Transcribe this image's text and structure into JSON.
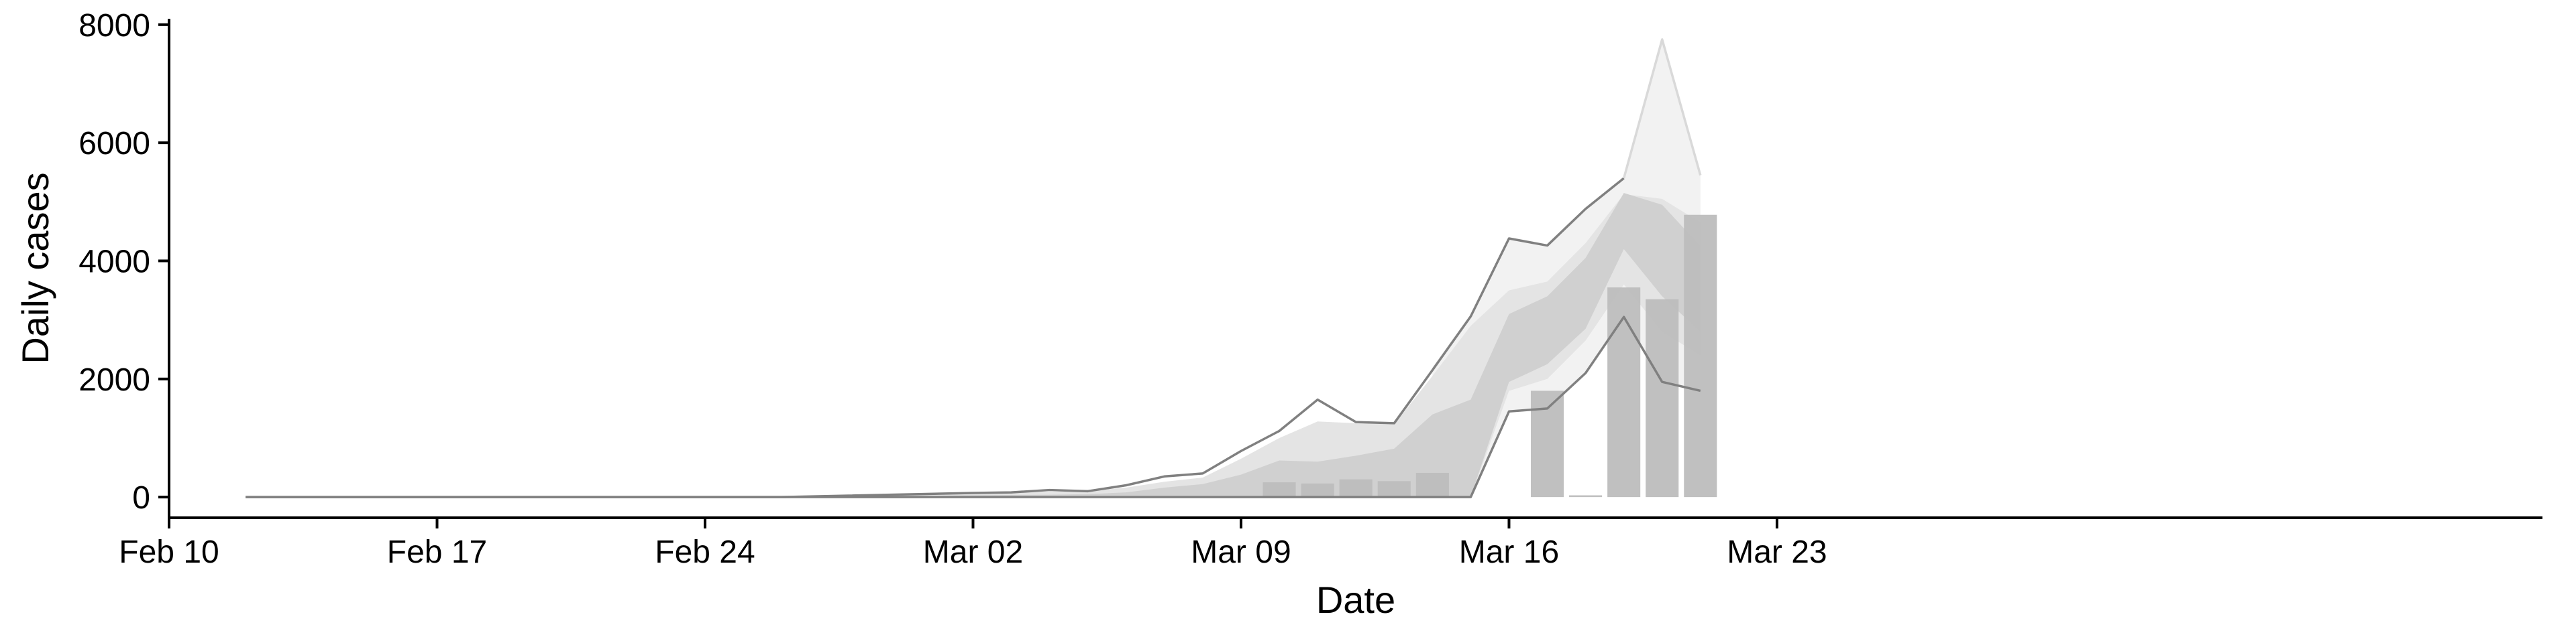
{
  "chart_data": {
    "type": "bar",
    "title": "",
    "xlabel": "Date",
    "ylabel": "Daily cases",
    "x_axis": {
      "type": "date",
      "range": [
        "2020-02-10",
        "2020-03-23"
      ],
      "ticks": [
        "2020-02-10",
        "2020-02-17",
        "2020-02-24",
        "2020-03-02",
        "2020-03-09",
        "2020-03-16",
        "2020-03-23"
      ],
      "tick_labels": [
        "Feb 10",
        "Feb 17",
        "Feb 24",
        "Mar 02",
        "Mar 09",
        "Mar 16",
        "Mar 23"
      ]
    },
    "y_axis": {
      "range": [
        -350,
        8100
      ],
      "ticks": [
        0,
        2000,
        4000,
        6000,
        8000
      ],
      "tick_labels": [
        "0",
        "2000",
        "4000",
        "6000",
        "8000"
      ]
    },
    "grid": false,
    "legend": "none",
    "colors": {
      "bars": "#bdbdbd",
      "band_outer": "#f2f2f2",
      "band_mid": "#e4e4e4",
      "band_inner": "#d0d0d0",
      "band_line": "#808080",
      "outer_line": "#d9d9d9",
      "axis": "#000000"
    },
    "series": [
      {
        "type": "bar",
        "x": [
          "2020-03-10",
          "2020-03-11",
          "2020-03-12",
          "2020-03-13",
          "2020-03-14",
          "2020-03-15",
          "2020-03-16",
          "2020-03-17",
          "2020-03-18",
          "2020-03-19",
          "2020-03-20",
          "2020-03-21"
        ],
        "values": [
          250,
          230,
          300,
          270,
          410,
          0,
          0,
          1800,
          30,
          3550,
          3350,
          4780
        ]
      },
      {
        "type": "band",
        "level": "outer",
        "x": [
          "2020-03-14",
          "2020-03-15",
          "2020-03-16",
          "2020-03-17",
          "2020-03-18",
          "2020-03-19",
          "2020-03-20",
          "2020-03-21"
        ],
        "lower": [
          0,
          0,
          1450,
          1500,
          2100,
          3050,
          1950,
          1800
        ],
        "upper": [
          2200,
          3100,
          4380,
          4260,
          4900,
          5400,
          7750,
          5450
        ]
      },
      {
        "type": "band",
        "level": "mid",
        "x": [
          "2020-02-12",
          "2020-02-26",
          "2020-03-02",
          "2020-03-04",
          "2020-03-05",
          "2020-03-06",
          "2020-03-07",
          "2020-03-08",
          "2020-03-09",
          "2020-03-10",
          "2020-03-11",
          "2020-03-12",
          "2020-03-13",
          "2020-03-14",
          "2020-03-15",
          "2020-03-16",
          "2020-03-17",
          "2020-03-18",
          "2020-03-19",
          "2020-03-20",
          "2020-03-21"
        ],
        "lower": [
          0,
          0,
          0,
          0,
          0,
          0,
          0,
          0,
          0,
          0,
          0,
          0,
          0,
          0,
          0,
          1800,
          2000,
          2650,
          3600,
          2800,
          2400
        ],
        "upper": [
          0,
          0,
          60,
          90,
          100,
          160,
          260,
          330,
          650,
          1000,
          1280,
          1250,
          1230,
          2050,
          2900,
          3500,
          3650,
          4300,
          5130,
          5050,
          4650
        ]
      },
      {
        "type": "band",
        "level": "inner",
        "x": [
          "2020-02-12",
          "2020-02-26",
          "2020-03-02",
          "2020-03-04",
          "2020-03-05",
          "2020-03-06",
          "2020-03-07",
          "2020-03-08",
          "2020-03-09",
          "2020-03-10",
          "2020-03-11",
          "2020-03-12",
          "2020-03-13",
          "2020-03-14",
          "2020-03-15",
          "2020-03-16",
          "2020-03-17",
          "2020-03-18",
          "2020-03-19",
          "2020-03-20",
          "2020-03-21"
        ],
        "lower": [
          0,
          0,
          0,
          0,
          0,
          0,
          0,
          0,
          0,
          0,
          0,
          0,
          0,
          0,
          0,
          1950,
          2250,
          2850,
          4200,
          3400,
          2800
        ],
        "upper": [
          0,
          0,
          30,
          40,
          50,
          80,
          160,
          220,
          380,
          620,
          600,
          700,
          820,
          1400,
          1650,
          3100,
          3400,
          4050,
          5150,
          4950,
          4250
        ]
      },
      {
        "type": "line",
        "level": "upper",
        "x": [
          "2020-02-12",
          "2020-02-26",
          "2020-03-02",
          "2020-03-03",
          "2020-03-04",
          "2020-03-05",
          "2020-03-06",
          "2020-03-07",
          "2020-03-08",
          "2020-03-09",
          "2020-03-10",
          "2020-03-11",
          "2020-03-12",
          "2020-03-13",
          "2020-03-14",
          "2020-03-15",
          "2020-03-16",
          "2020-03-17",
          "2020-03-18",
          "2020-03-19"
        ],
        "values": [
          0,
          0,
          70,
          80,
          120,
          100,
          200,
          350,
          400,
          780,
          1120,
          1650,
          1270,
          1250,
          2150,
          3060,
          4380,
          4260,
          4880,
          5400
        ]
      },
      {
        "type": "line",
        "level": "lower",
        "x": [
          "2020-02-12",
          "2020-03-15",
          "2020-03-16",
          "2020-03-17",
          "2020-03-18",
          "2020-03-19",
          "2020-03-20",
          "2020-03-21"
        ],
        "values": [
          0,
          0,
          1450,
          1500,
          2100,
          3050,
          1950,
          1800
        ]
      },
      {
        "type": "line",
        "level": "outer-upper",
        "x": [
          "2020-03-19",
          "2020-03-20",
          "2020-03-21"
        ],
        "values": [
          5400,
          7750,
          5450
        ]
      }
    ]
  }
}
